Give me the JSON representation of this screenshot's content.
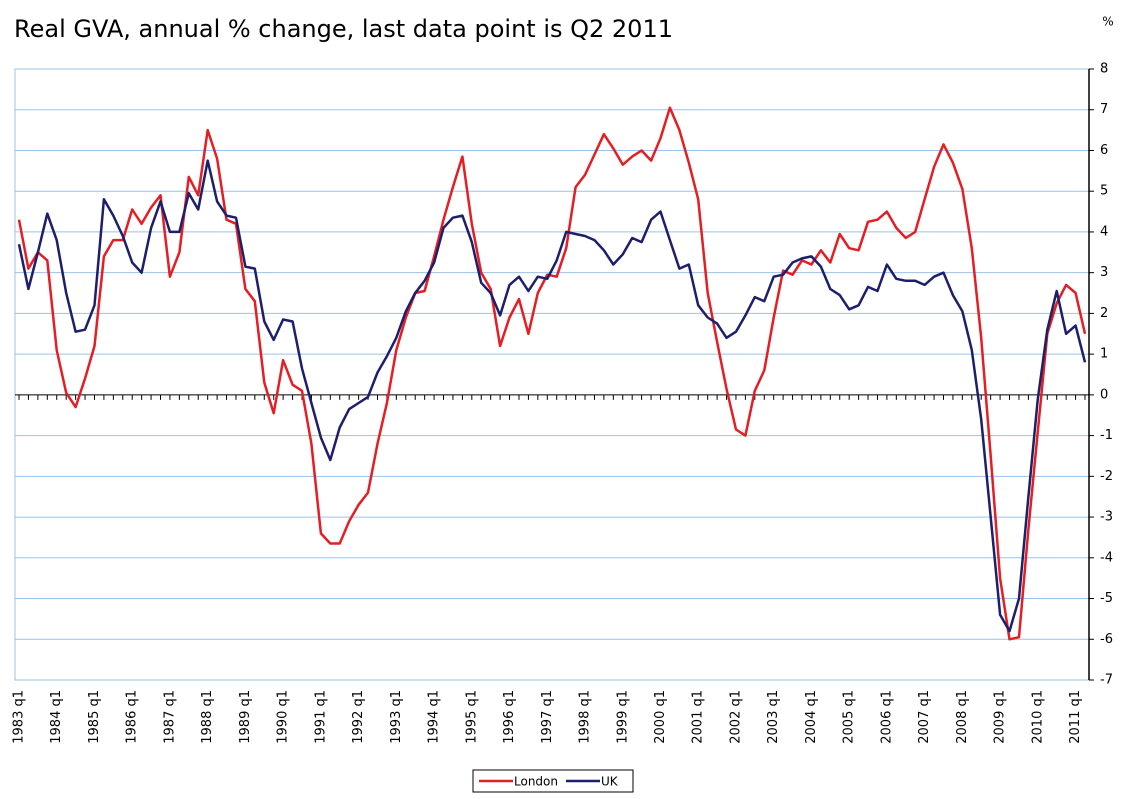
{
  "chart_data": {
    "type": "line",
    "title": "Real GVA, annual % change, last data point is Q2 2011",
    "y_unit": "%",
    "categories": [
      "1983 q1",
      null,
      null,
      null,
      "1984 q1",
      null,
      null,
      null,
      "1985 q1",
      null,
      null,
      null,
      "1986 q1",
      null,
      null,
      null,
      "1987 q1",
      null,
      null,
      null,
      "1988 q1",
      null,
      null,
      null,
      "1989 q1",
      null,
      null,
      null,
      "1990 q1",
      null,
      null,
      null,
      "1991 q1",
      null,
      null,
      null,
      "1992 q1",
      null,
      null,
      null,
      "1993 q1",
      null,
      null,
      null,
      "1994 q1",
      null,
      null,
      null,
      "1995 q1",
      null,
      null,
      null,
      "1996 q1",
      null,
      null,
      null,
      "1997 q1",
      null,
      null,
      null,
      "1998 q1",
      null,
      null,
      null,
      "1999 q1",
      null,
      null,
      null,
      "2000 q1",
      null,
      null,
      null,
      "2001 q1",
      null,
      null,
      null,
      "2002 q1",
      null,
      null,
      null,
      "2003 q1",
      null,
      null,
      null,
      "2004 q1",
      null,
      null,
      null,
      "2005 q1",
      null,
      null,
      null,
      "2006 q1",
      null,
      null,
      null,
      "2007 q1",
      null,
      null,
      null,
      "2008 q1",
      null,
      null,
      null,
      "2009 q1",
      null,
      null,
      null,
      "2010 q1",
      null,
      null,
      null,
      "2011 q1",
      null
    ],
    "series": [
      {
        "name": "London",
        "color": "#e31e24",
        "values": [
          4.3,
          3.1,
          3.5,
          3.3,
          1.1,
          0.05,
          -0.3,
          0.4,
          1.2,
          3.4,
          3.8,
          3.8,
          4.55,
          4.2,
          4.6,
          4.9,
          2.9,
          3.5,
          5.35,
          4.9,
          6.5,
          5.8,
          4.3,
          4.2,
          2.6,
          2.3,
          0.3,
          -0.45,
          0.85,
          0.25,
          0.1,
          -1.2,
          -3.4,
          -3.65,
          -3.65,
          -3.1,
          -2.7,
          -2.4,
          -1.2,
          -0.2,
          1.1,
          1.9,
          2.5,
          2.55,
          3.4,
          4.3,
          5.1,
          5.85,
          4.2,
          3.0,
          2.6,
          1.2,
          1.9,
          2.35,
          1.5,
          2.5,
          2.95,
          2.9,
          3.6,
          5.1,
          5.4,
          5.9,
          6.4,
          6.05,
          5.65,
          5.85,
          6.0,
          5.75,
          6.3,
          7.05,
          6.5,
          5.7,
          4.8,
          2.5,
          1.3,
          0.15,
          -0.85,
          -1.0,
          0.1,
          0.6,
          1.9,
          3.05,
          2.95,
          3.3,
          3.2,
          3.55,
          3.25,
          3.95,
          3.6,
          3.55,
          4.25,
          4.3,
          4.5,
          4.1,
          3.85,
          4.0,
          4.8,
          5.6,
          6.15,
          5.7,
          5.05,
          3.6,
          1.4,
          -1.5,
          -4.5,
          -6.0,
          -5.95,
          -3.3,
          -0.9,
          1.5,
          2.25,
          2.7,
          2.5,
          1.5
        ]
      },
      {
        "name": "UK",
        "color": "#1d1f6b",
        "values": [
          3.7,
          2.6,
          3.5,
          4.45,
          3.8,
          2.5,
          1.55,
          1.6,
          2.2,
          4.8,
          4.4,
          3.9,
          3.25,
          3.0,
          4.1,
          4.75,
          4.0,
          4.0,
          4.95,
          4.55,
          5.75,
          4.75,
          4.4,
          4.35,
          3.15,
          3.1,
          1.8,
          1.35,
          1.85,
          1.8,
          0.65,
          -0.2,
          -1.05,
          -1.6,
          -0.8,
          -0.35,
          -0.2,
          -0.05,
          0.55,
          0.95,
          1.4,
          2.05,
          2.5,
          2.8,
          3.25,
          4.1,
          4.35,
          4.4,
          3.75,
          2.75,
          2.5,
          1.95,
          2.7,
          2.9,
          2.55,
          2.9,
          2.85,
          3.3,
          4.0,
          3.95,
          3.9,
          3.8,
          3.55,
          3.2,
          3.45,
          3.85,
          3.75,
          4.3,
          4.5,
          3.8,
          3.1,
          3.2,
          2.2,
          1.9,
          1.75,
          1.4,
          1.55,
          1.95,
          2.4,
          2.3,
          2.9,
          2.95,
          3.25,
          3.35,
          3.4,
          3.15,
          2.6,
          2.45,
          2.1,
          2.2,
          2.65,
          2.55,
          3.2,
          2.85,
          2.8,
          2.8,
          2.7,
          2.9,
          3.0,
          2.45,
          2.05,
          1.1,
          -0.6,
          -3.0,
          -5.4,
          -5.8,
          -5.0,
          -2.5,
          -0.1,
          1.6,
          2.55,
          1.5,
          1.7,
          0.8
        ]
      }
    ],
    "ylim": [
      -7,
      8
    ],
    "yticks": [
      -7,
      -6,
      -5,
      -4,
      -3,
      -2,
      -1,
      0,
      1,
      2,
      3,
      4,
      5,
      6,
      7,
      8
    ],
    "grid": true,
    "legend": "bottom"
  }
}
